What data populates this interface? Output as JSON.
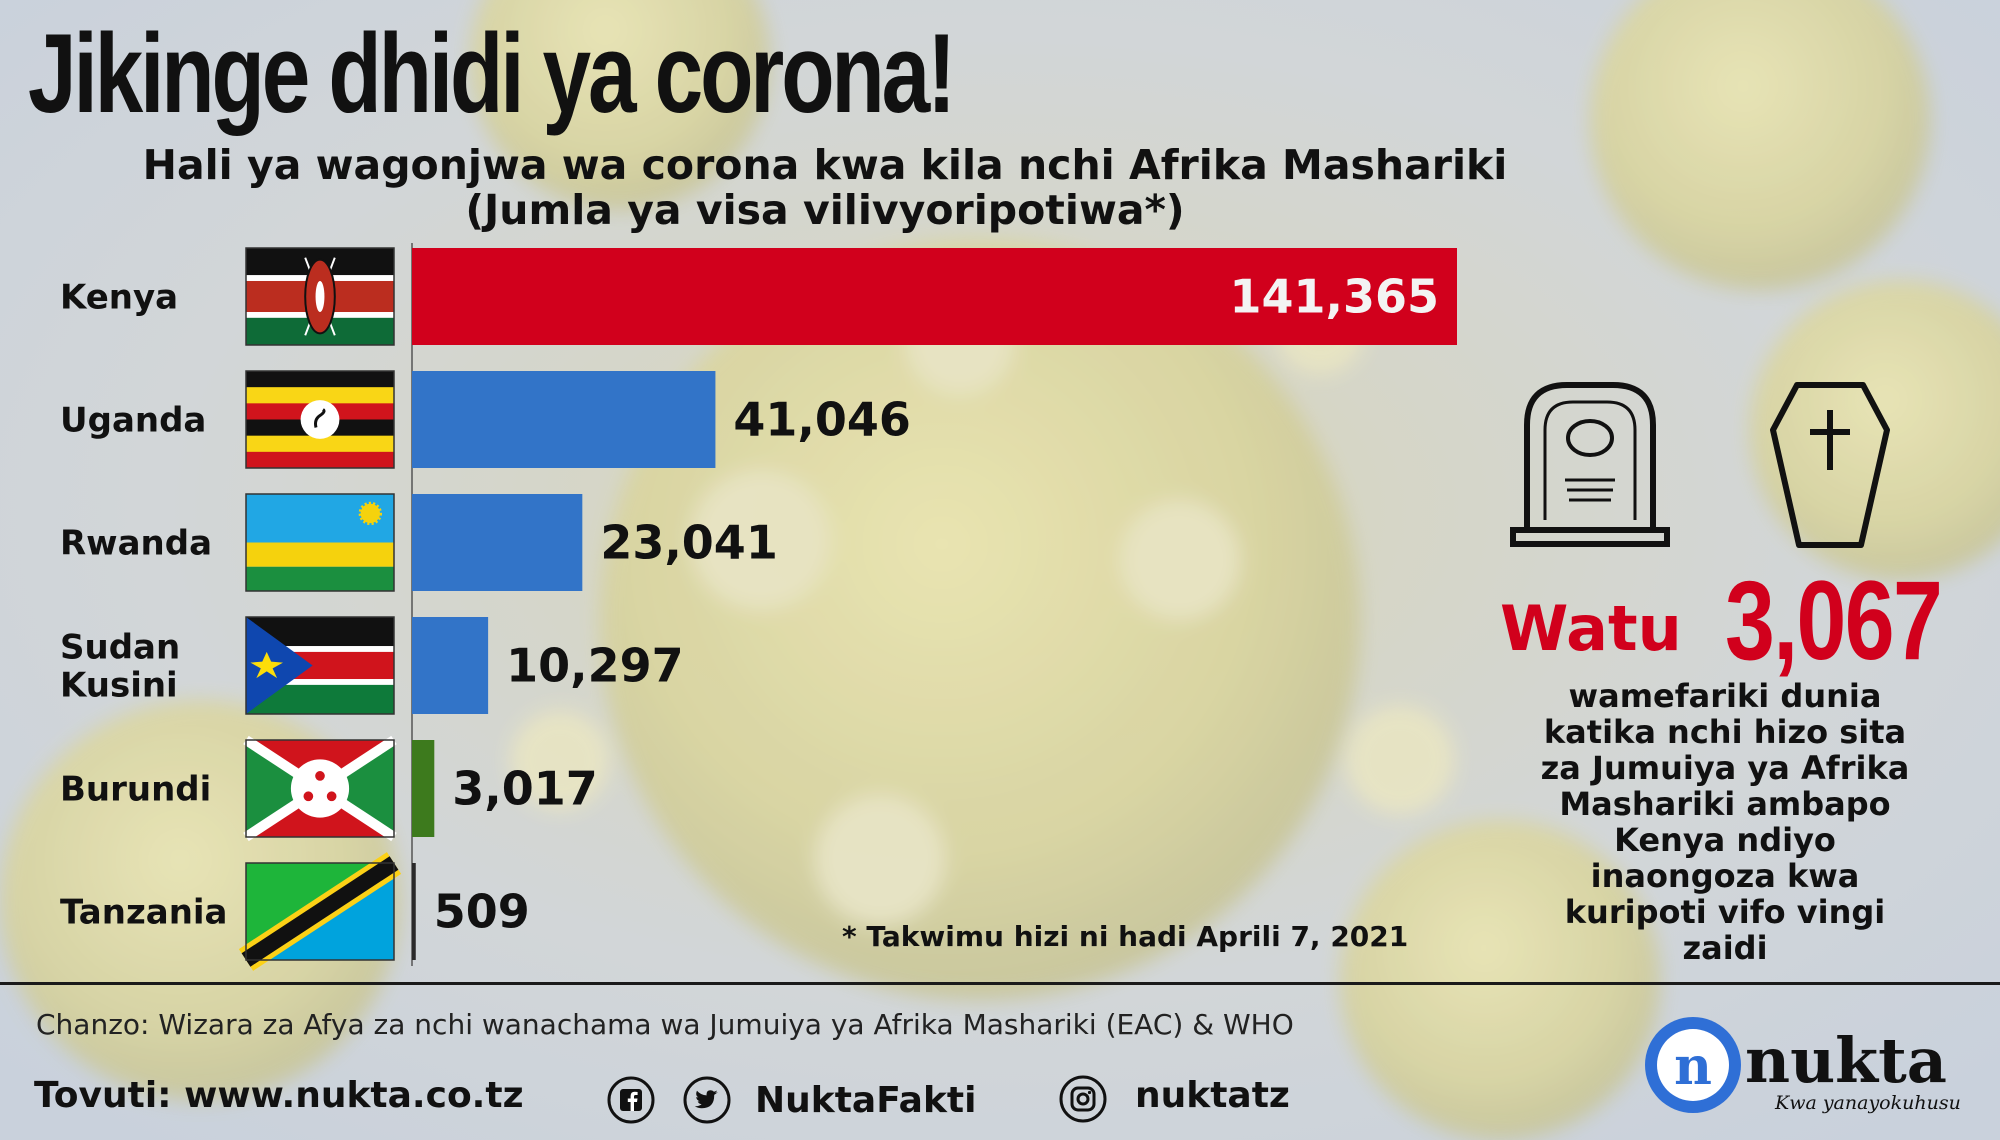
{
  "title": "Jikinge dhidi ya corona!",
  "subtitle_line1": "Hali ya wagonjwa wa corona kwa kila nchi Afrika Mashariki",
  "subtitle_line2": "(Jumla ya visa vilivyoripotiwa*)",
  "chart_data": {
    "type": "bar",
    "orientation": "horizontal",
    "categories": [
      "Kenya",
      "Uganda",
      "Rwanda",
      "Sudan Kusini",
      "Burundi",
      "Tanzania"
    ],
    "category_lines": [
      [
        "Kenya"
      ],
      [
        "Uganda"
      ],
      [
        "Rwanda"
      ],
      [
        "Sudan",
        "Kusini"
      ],
      [
        "Burundi"
      ],
      [
        "Tanzania"
      ]
    ],
    "values": [
      141365,
      41046,
      23041,
      10297,
      3017,
      509
    ],
    "value_labels": [
      "141,365",
      "41,046",
      "23,041",
      "10,297",
      "3,017",
      "509"
    ],
    "bar_colors": [
      "#d1001c",
      "#3274c8",
      "#3274c8",
      "#3274c8",
      "#3d7a1d",
      "#2a2a2a"
    ],
    "flags": [
      "kenya-flag",
      "uganda-flag",
      "rwanda-flag",
      "south-sudan-flag",
      "burundi-flag",
      "tanzania-flag"
    ],
    "xlim": [
      0,
      141365
    ],
    "grid": false,
    "legend": "none"
  },
  "deaths": {
    "label": "Watu",
    "count": "3,067",
    "description": "wamefariki dunia katika nchi hizo sita za Jumuiya ya Afrika Mashariki ambapo Kenya ndiyo inaongoza kwa kuripoti vifo vingi zaidi",
    "description_lines": [
      "wamefariki dunia",
      "katika nchi hizo sita",
      "za Jumuiya ya Afrika",
      "Mashariki ambapo",
      "Kenya ndiyo",
      "inaongoza kwa",
      "kuripoti vifo vingi",
      "zaidi"
    ],
    "icons": [
      "gravestone-icon",
      "coffin-icon"
    ],
    "accent_color": "#d1001c"
  },
  "footnote": "* Takwimu hizi ni  hadi Aprili 7, 2021",
  "source": "Chanzo: Wizara za Afya za nchi wanachama wa Jumuiya ya Afrika Mashariki (EAC) & WHO",
  "website": "Tovuti: www.nukta.co.tz",
  "social": {
    "handle_main": "NuktaFakti",
    "handle_instagram": "nuktatz",
    "icons": [
      "facebook-icon",
      "twitter-icon",
      "instagram-icon"
    ]
  },
  "brand": {
    "name": "nukta",
    "logo_letter": "n",
    "tagline": "Kwa yanayokuhusu",
    "color": "#2f6fd6"
  }
}
